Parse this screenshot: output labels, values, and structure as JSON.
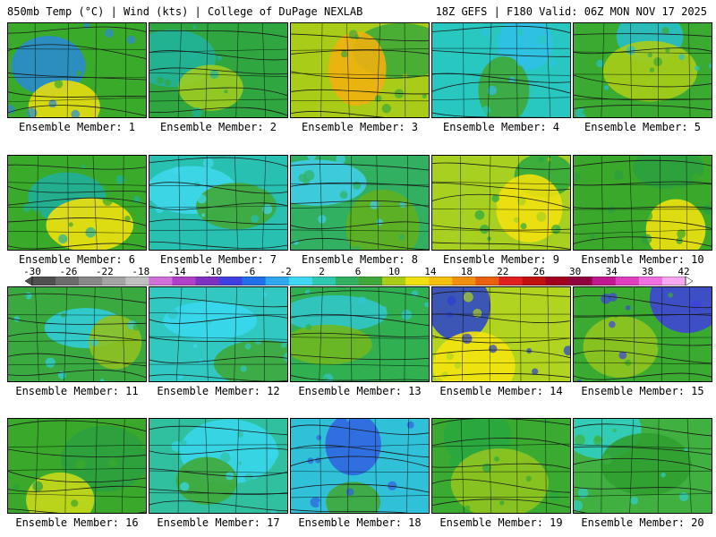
{
  "header": {
    "left": "850mb Temp (°C) | Wind (kts) | College of DuPage NEXLAB",
    "right": "18Z GEFS | F180 Valid: 06Z MON NOV 17 2025"
  },
  "members": [
    {
      "label": "Ensemble Member: 1",
      "base": "#3aaa2a",
      "warm": "#e6dc10",
      "cold": "#2a8ad8"
    },
    {
      "label": "Ensemble Member: 2",
      "base": "#2fa640",
      "warm": "#9ccc20",
      "cold": "#20b4a0"
    },
    {
      "label": "Ensemble Member: 3",
      "base": "#a8cc18",
      "warm": "#f0b010",
      "cold": "#3aa83a"
    },
    {
      "label": "Ensemble Member: 4",
      "base": "#28c8c0",
      "warm": "#40a838",
      "cold": "#30c0e8"
    },
    {
      "label": "Ensemble Member: 5",
      "base": "#3aaa30",
      "warm": "#a8cc18",
      "cold": "#28c0d0"
    },
    {
      "label": "Ensemble Member: 6",
      "base": "#3aaa2a",
      "warm": "#f0e010",
      "cold": "#20b0a0"
    },
    {
      "label": "Ensemble Member: 7",
      "base": "#28c0b0",
      "warm": "#40a838",
      "cold": "#40d8f0"
    },
    {
      "label": "Ensemble Member: 8",
      "base": "#30b060",
      "warm": "#60b020",
      "cold": "#40d0f0"
    },
    {
      "label": "Ensemble Member: 9",
      "base": "#a8d020",
      "warm": "#f0e010",
      "cold": "#2aa840"
    },
    {
      "label": "Ensemble Member: 10",
      "base": "#3aa82a",
      "warm": "#f0e010",
      "cold": "#2aa040"
    },
    {
      "label": "Ensemble Member: 11",
      "base": "#3aaa40",
      "warm": "#90c020",
      "cold": "#30d0e0"
    },
    {
      "label": "Ensemble Member: 12",
      "base": "#30c8c0",
      "warm": "#40a838",
      "cold": "#38d8f0"
    },
    {
      "label": "Ensemble Member: 13",
      "base": "#30b050",
      "warm": "#70b820",
      "cold": "#30c8d0"
    },
    {
      "label": "Ensemble Member: 14",
      "base": "#b0d420",
      "warm": "#f4e410",
      "cold": "#2840d0"
    },
    {
      "label": "Ensemble Member: 15",
      "base": "#3aaa30",
      "warm": "#90c420",
      "cold": "#4040e0"
    },
    {
      "label": "Ensemble Member: 16",
      "base": "#3aa82a",
      "warm": "#c8d818",
      "cold": "#2aa040"
    },
    {
      "label": "Ensemble Member: 17",
      "base": "#30c0a0",
      "warm": "#40a838",
      "cold": "#38d8f0"
    },
    {
      "label": "Ensemble Member: 18",
      "base": "#30c0d8",
      "warm": "#40a838",
      "cold": "#3060e0"
    },
    {
      "label": "Ensemble Member: 19",
      "base": "#3aaa30",
      "warm": "#90c420",
      "cold": "#28a840"
    },
    {
      "label": "Ensemble Member: 20",
      "base": "#40b040",
      "warm": "#30a030",
      "cold": "#30d0c8"
    }
  ],
  "colorbar": {
    "ticks": [
      "-30",
      "-26",
      "-22",
      "-18",
      "-14",
      "-10",
      "-6",
      "-2",
      "2",
      "6",
      "10",
      "14",
      "18",
      "22",
      "26",
      "30",
      "34",
      "38",
      "42"
    ],
    "colors": [
      "#505050",
      "#6c6c6c",
      "#888888",
      "#a4a4a4",
      "#c0c0c0",
      "#d070d8",
      "#b040c8",
      "#8030c0",
      "#4040e0",
      "#2070e8",
      "#30a8f0",
      "#40d8f0",
      "#30c8b0",
      "#30b060",
      "#40a838",
      "#a8cc18",
      "#f0e010",
      "#f4c010",
      "#f09010",
      "#e86010",
      "#e02020",
      "#c01010",
      "#a00020",
      "#900040",
      "#c01890",
      "#e040c0",
      "#f070e0",
      "#f8a8f0"
    ]
  }
}
